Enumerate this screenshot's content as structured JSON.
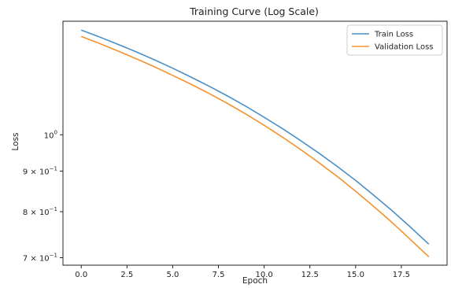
{
  "chart_data": {
    "type": "line",
    "title": "Training Curve (Log Scale)",
    "xlabel": "Epoch",
    "ylabel": "Loss",
    "xlim": [
      -1,
      20
    ],
    "ylim": [
      0.685,
      1.39
    ],
    "yscale": "log",
    "grid": false,
    "legend_position": "top-right",
    "x_ticks": [
      {
        "value": 0,
        "label": "0.0"
      },
      {
        "value": 2.5,
        "label": "2.5"
      },
      {
        "value": 5,
        "label": "5.0"
      },
      {
        "value": 7.5,
        "label": "7.5"
      },
      {
        "value": 10,
        "label": "10.0"
      },
      {
        "value": 12.5,
        "label": "12.5"
      },
      {
        "value": 15,
        "label": "15.0"
      },
      {
        "value": 17.5,
        "label": "17.5"
      }
    ],
    "y_ticks": [
      {
        "value": 1.0,
        "base": "10",
        "exp": "0"
      },
      {
        "value": 0.9,
        "base": "9 × 10",
        "exp": "−1"
      },
      {
        "value": 0.8,
        "base": "8 × 10",
        "exp": "−1"
      },
      {
        "value": 0.7,
        "base": "7 × 10",
        "exp": "−1"
      }
    ],
    "x": [
      0,
      1,
      2,
      3,
      4,
      5,
      6,
      7,
      8,
      9,
      10,
      11,
      12,
      13,
      14,
      15,
      16,
      17,
      18,
      19
    ],
    "series": [
      {
        "name": "Train Loss",
        "color": "#4a90c8",
        "values": [
          1.355,
          1.328,
          1.3,
          1.272,
          1.243,
          1.213,
          1.182,
          1.151,
          1.119,
          1.086,
          1.052,
          1.018,
          0.983,
          0.948,
          0.912,
          0.876,
          0.839,
          0.802,
          0.765,
          0.728
        ]
      },
      {
        "name": "Validation Loss",
        "color": "#f5922e",
        "values": [
          1.33,
          1.303,
          1.275,
          1.247,
          1.218,
          1.188,
          1.158,
          1.127,
          1.095,
          1.062,
          1.028,
          0.993,
          0.958,
          0.922,
          0.886,
          0.849,
          0.812,
          0.775,
          0.738,
          0.702
        ]
      }
    ]
  }
}
